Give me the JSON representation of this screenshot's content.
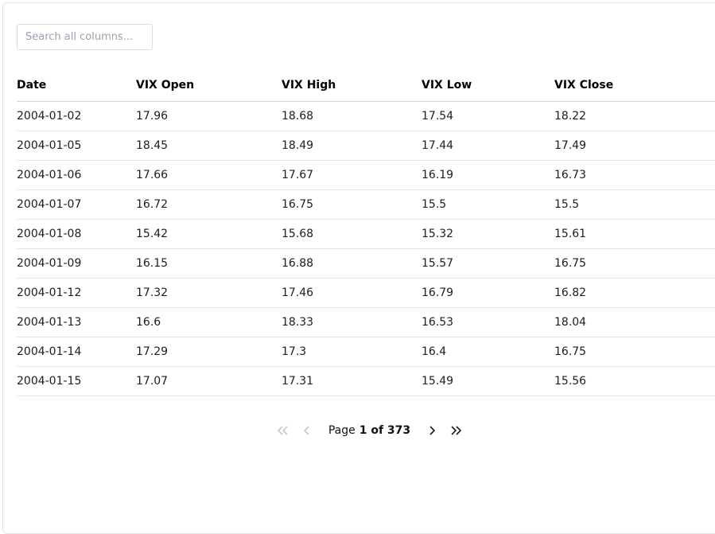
{
  "search": {
    "placeholder": "Search all columns..."
  },
  "table": {
    "columns": [
      "Date",
      "VIX Open",
      "VIX High",
      "VIX Low",
      "VIX Close"
    ],
    "rows": [
      [
        "2004-01-02",
        "17.96",
        "18.68",
        "17.54",
        "18.22"
      ],
      [
        "2004-01-05",
        "18.45",
        "18.49",
        "17.44",
        "17.49"
      ],
      [
        "2004-01-06",
        "17.66",
        "17.67",
        "16.19",
        "16.73"
      ],
      [
        "2004-01-07",
        "16.72",
        "16.75",
        "15.5",
        "15.5"
      ],
      [
        "2004-01-08",
        "15.42",
        "15.68",
        "15.32",
        "15.61"
      ],
      [
        "2004-01-09",
        "16.15",
        "16.88",
        "15.57",
        "16.75"
      ],
      [
        "2004-01-12",
        "17.32",
        "17.46",
        "16.79",
        "16.82"
      ],
      [
        "2004-01-13",
        "16.6",
        "18.33",
        "16.53",
        "18.04"
      ],
      [
        "2004-01-14",
        "17.29",
        "17.3",
        "16.4",
        "16.75"
      ],
      [
        "2004-01-15",
        "17.07",
        "17.31",
        "15.49",
        "15.56"
      ]
    ]
  },
  "pagination": {
    "label_prefix": "Page",
    "current": "1 of 373",
    "first_enabled": false,
    "prev_enabled": false,
    "next_enabled": true,
    "last_enabled": true
  },
  "colors": {
    "header_border": "#c9d4e0",
    "row_border": "#dfe7ee",
    "card_border": "#dfe5ea",
    "chevron_enabled": "#1c1c1c",
    "chevron_disabled": "#c6c6c6",
    "placeholder_text": "#98a2b3"
  }
}
